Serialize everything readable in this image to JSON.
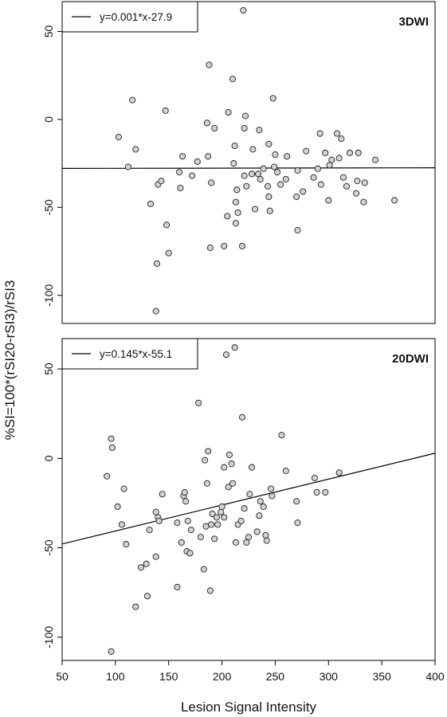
{
  "chart_data": [
    {
      "type": "scatter",
      "panel_label": "3DWI",
      "legend": {
        "entry": "y=0.001*x-27.9",
        "placement": "top-left"
      },
      "regression": {
        "slope": 0.001,
        "intercept": -27.9
      },
      "xlim": [
        50,
        400
      ],
      "ylim": [
        -116,
        67
      ],
      "yticks": [
        50,
        0,
        -50,
        -100
      ],
      "y_tick_labels": [
        "50",
        "0",
        "-50",
        "-100"
      ],
      "points": [
        [
          103,
          -10
        ],
        [
          112,
          -27
        ],
        [
          116,
          11
        ],
        [
          119,
          -17
        ],
        [
          133,
          -48
        ],
        [
          138,
          -109
        ],
        [
          139,
          -82
        ],
        [
          140,
          -37
        ],
        [
          143,
          -35
        ],
        [
          147,
          5
        ],
        [
          148,
          -60
        ],
        [
          150,
          -76
        ],
        [
          160,
          -30
        ],
        [
          161,
          -39
        ],
        [
          163,
          -21
        ],
        [
          172,
          -32
        ],
        [
          177,
          -24
        ],
        [
          186,
          -2
        ],
        [
          187,
          -21
        ],
        [
          188,
          31
        ],
        [
          189,
          -73
        ],
        [
          190,
          -36
        ],
        [
          193,
          -5
        ],
        [
          202,
          -72
        ],
        [
          205,
          -55
        ],
        [
          206,
          4
        ],
        [
          210,
          23
        ],
        [
          211,
          -25
        ],
        [
          212,
          -15
        ],
        [
          213,
          -47
        ],
        [
          213,
          -59
        ],
        [
          214,
          -40
        ],
        [
          215,
          -53
        ],
        [
          219,
          -72
        ],
        [
          220,
          62
        ],
        [
          221,
          -32
        ],
        [
          221,
          -5
        ],
        [
          222,
          2
        ],
        [
          223,
          -38
        ],
        [
          228,
          -31
        ],
        [
          229,
          -17
        ],
        [
          231,
          -51
        ],
        [
          234,
          -31
        ],
        [
          235,
          -6
        ],
        [
          236,
          -34
        ],
        [
          239,
          -28
        ],
        [
          243,
          -38
        ],
        [
          244,
          -14
        ],
        [
          244,
          -44
        ],
        [
          245,
          -52
        ],
        [
          248,
          12
        ],
        [
          249,
          -27
        ],
        [
          250,
          -20
        ],
        [
          252,
          -30
        ],
        [
          255,
          -37
        ],
        [
          260,
          -34
        ],
        [
          261,
          -21
        ],
        [
          270,
          -44
        ],
        [
          271,
          -29
        ],
        [
          271,
          -63
        ],
        [
          276,
          -41
        ],
        [
          279,
          -18
        ],
        [
          286,
          -33
        ],
        [
          290,
          -28
        ],
        [
          292,
          -8
        ],
        [
          293,
          -37
        ],
        [
          297,
          -19
        ],
        [
          300,
          -46
        ],
        [
          301,
          -26
        ],
        [
          303,
          -23
        ],
        [
          308,
          -8
        ],
        [
          310,
          -22
        ],
        [
          312,
          -11
        ],
        [
          314,
          -33
        ],
        [
          317,
          -38
        ],
        [
          320,
          -19
        ],
        [
          326,
          -42
        ],
        [
          327,
          -35
        ],
        [
          328,
          -19
        ],
        [
          333,
          -47
        ],
        [
          334,
          -36
        ],
        [
          344,
          -23
        ],
        [
          362,
          -46
        ]
      ]
    },
    {
      "type": "scatter",
      "panel_label": "20DWI",
      "legend": {
        "entry": "y=0.145*x-55.1",
        "placement": "top-left"
      },
      "regression": {
        "slope": 0.145,
        "intercept": -55.1
      },
      "xlim": [
        50,
        400
      ],
      "ylim": [
        -113,
        67
      ],
      "yticks": [
        50,
        0,
        -50,
        -100
      ],
      "y_tick_labels": [
        "50",
        "0",
        "-50",
        "-100"
      ],
      "points": [
        [
          92,
          -10
        ],
        [
          96,
          -108
        ],
        [
          96,
          11
        ],
        [
          97,
          6
        ],
        [
          102,
          -27
        ],
        [
          106,
          -37
        ],
        [
          108,
          -17
        ],
        [
          110,
          -48
        ],
        [
          119,
          -83
        ],
        [
          124,
          -61
        ],
        [
          129,
          -59
        ],
        [
          130,
          -77
        ],
        [
          132,
          -40
        ],
        [
          138,
          -30
        ],
        [
          138,
          -55
        ],
        [
          140,
          -33
        ],
        [
          141,
          -35
        ],
        [
          144,
          -20
        ],
        [
          158,
          -36
        ],
        [
          158,
          -72
        ],
        [
          162,
          -47
        ],
        [
          164,
          -21
        ],
        [
          165,
          -19
        ],
        [
          166,
          -24
        ],
        [
          167,
          -52
        ],
        [
          168,
          -35
        ],
        [
          170,
          -53
        ],
        [
          171,
          -40
        ],
        [
          178,
          31
        ],
        [
          180,
          -44
        ],
        [
          183,
          -62
        ],
        [
          184,
          -1
        ],
        [
          185,
          -38
        ],
        [
          186,
          -14
        ],
        [
          187,
          4
        ],
        [
          189,
          -74
        ],
        [
          190,
          -37
        ],
        [
          191,
          -31
        ],
        [
          193,
          -45
        ],
        [
          195,
          -33
        ],
        [
          196,
          -37
        ],
        [
          199,
          -30
        ],
        [
          200,
          -27
        ],
        [
          202,
          -33
        ],
        [
          202,
          -5
        ],
        [
          204,
          58
        ],
        [
          206,
          -16
        ],
        [
          207,
          2
        ],
        [
          209,
          -3
        ],
        [
          210,
          -14
        ],
        [
          212,
          62
        ],
        [
          213,
          -47
        ],
        [
          215,
          -37
        ],
        [
          218,
          -35
        ],
        [
          219,
          23
        ],
        [
          221,
          -28
        ],
        [
          223,
          -47
        ],
        [
          225,
          -44
        ],
        [
          226,
          -20
        ],
        [
          228,
          -5
        ],
        [
          233,
          -41
        ],
        [
          235,
          -32
        ],
        [
          236,
          -24
        ],
        [
          239,
          -27
        ],
        [
          241,
          -43
        ],
        [
          242,
          -46
        ],
        [
          246,
          -17
        ],
        [
          247,
          -21
        ],
        [
          256,
          13
        ],
        [
          260,
          -7
        ],
        [
          270,
          -24
        ],
        [
          271,
          -36
        ],
        [
          287,
          -11
        ],
        [
          289,
          -19
        ],
        [
          297,
          -19
        ],
        [
          310,
          -8
        ]
      ]
    }
  ],
  "shared_axes": {
    "xlabel": "Lesion Signal Intensity",
    "ylabel": "%SI=100*(rSI20-rSI3)/rSI3",
    "xticks": [
      50,
      100,
      150,
      200,
      250,
      300,
      350,
      400
    ],
    "x_tick_labels": [
      "50",
      "100",
      "150",
      "200",
      "250",
      "300",
      "350",
      "400"
    ]
  },
  "colors": {
    "marker_fill": "#d3d3d3",
    "marker_stroke": "#222222",
    "axis": "#000000",
    "background": "#ffffff"
  }
}
